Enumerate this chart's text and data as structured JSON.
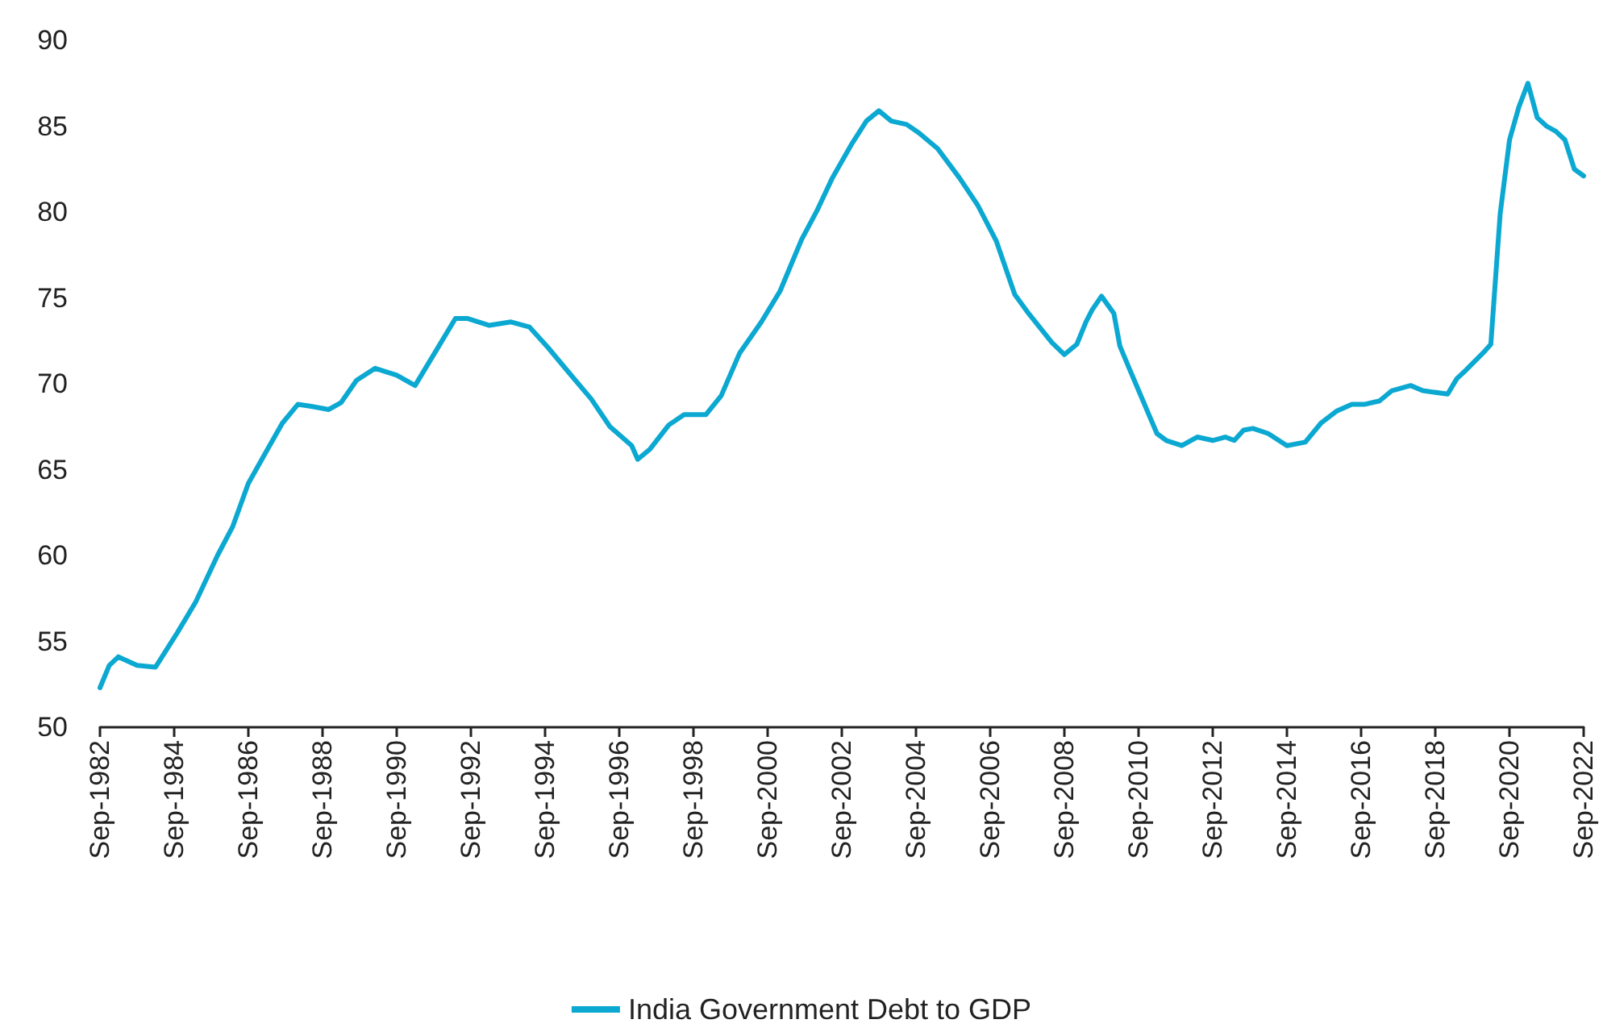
{
  "chart_data": {
    "type": "line",
    "x": [
      "1982-09",
      "1982-12",
      "1983-03",
      "1983-09",
      "1984-03",
      "1984-10",
      "1985-04",
      "1985-11",
      "1986-04",
      "1986-09",
      "1987-03",
      "1987-08",
      "1988-01",
      "1988-05",
      "1988-11",
      "1989-03",
      "1989-08",
      "1990-02",
      "1990-09",
      "1991-03",
      "1991-10",
      "1992-04",
      "1992-08",
      "1993-03",
      "1993-10",
      "1994-04",
      "1994-10",
      "1995-05",
      "1995-12",
      "1996-06",
      "1997-01",
      "1997-03",
      "1997-07",
      "1998-01",
      "1998-06",
      "1999-01",
      "1999-06",
      "1999-12",
      "2000-07",
      "2001-01",
      "2001-08",
      "2002-01",
      "2002-06",
      "2002-12",
      "2003-05",
      "2003-09",
      "2004-01",
      "2004-06",
      "2004-10",
      "2005-04",
      "2005-11",
      "2006-05",
      "2006-11",
      "2007-05",
      "2007-09",
      "2008-05",
      "2008-09",
      "2009-01",
      "2009-04",
      "2009-06",
      "2009-09",
      "2010-01",
      "2010-03",
      "2010-06",
      "2010-10",
      "2011-03",
      "2011-06",
      "2011-11",
      "2012-04",
      "2012-09",
      "2013-01",
      "2013-04",
      "2013-07",
      "2013-10",
      "2014-03",
      "2014-09",
      "2015-03",
      "2015-08",
      "2016-01",
      "2016-06",
      "2016-10",
      "2017-03",
      "2017-07",
      "2018-01",
      "2018-05",
      "2019-01",
      "2019-04",
      "2019-07",
      "2020-01",
      "2020-03",
      "2020-06",
      "2020-09",
      "2020-12",
      "2021-03",
      "2021-06",
      "2021-09",
      "2021-12",
      "2022-03",
      "2022-06",
      "2022-09"
    ],
    "series": [
      {
        "name": "India Government Debt to GDP",
        "color": "#0ba8d2",
        "values": [
          52.3,
          53.6,
          54.1,
          53.6,
          53.5,
          55.5,
          57.3,
          60.0,
          61.7,
          64.2,
          66.1,
          67.7,
          68.8,
          68.7,
          68.5,
          68.9,
          70.2,
          70.9,
          70.5,
          69.9,
          72.0,
          73.8,
          73.8,
          73.4,
          73.6,
          73.3,
          72.1,
          70.6,
          69.1,
          67.5,
          66.4,
          65.6,
          66.2,
          67.6,
          68.2,
          68.2,
          69.3,
          71.8,
          73.6,
          75.4,
          78.4,
          80.1,
          82.0,
          83.9,
          85.3,
          85.9,
          85.3,
          85.1,
          84.6,
          83.7,
          82.0,
          80.4,
          78.3,
          75.2,
          74.2,
          72.4,
          71.7,
          72.3,
          73.6,
          74.3,
          75.1,
          74.1,
          72.2,
          70.9,
          69.2,
          67.1,
          66.7,
          66.4,
          66.9,
          66.7,
          66.9,
          66.7,
          67.3,
          67.4,
          67.1,
          66.4,
          66.6,
          67.7,
          68.4,
          68.8,
          68.8,
          69.0,
          69.6,
          69.9,
          69.6,
          69.4,
          70.3,
          70.8,
          71.9,
          72.3,
          79.9,
          84.2,
          86.1,
          87.5,
          85.5,
          85.0,
          84.7,
          84.2,
          82.5,
          82.1
        ]
      }
    ],
    "xlim": [
      "1982-09",
      "2022-09"
    ],
    "xticks": [
      {
        "value": "1982-09",
        "label": "Sep-1982"
      },
      {
        "value": "1984-09",
        "label": "Sep-1984"
      },
      {
        "value": "1986-09",
        "label": "Sep-1986"
      },
      {
        "value": "1988-09",
        "label": "Sep-1988"
      },
      {
        "value": "1990-09",
        "label": "Sep-1990"
      },
      {
        "value": "1992-09",
        "label": "Sep-1992"
      },
      {
        "value": "1994-09",
        "label": "Sep-1994"
      },
      {
        "value": "1996-09",
        "label": "Sep-1996"
      },
      {
        "value": "1998-09",
        "label": "Sep-1998"
      },
      {
        "value": "2000-09",
        "label": "Sep-2000"
      },
      {
        "value": "2002-09",
        "label": "Sep-2002"
      },
      {
        "value": "2004-09",
        "label": "Sep-2004"
      },
      {
        "value": "2006-09",
        "label": "Sep-2006"
      },
      {
        "value": "2008-09",
        "label": "Sep-2008"
      },
      {
        "value": "2010-09",
        "label": "Sep-2010"
      },
      {
        "value": "2012-09",
        "label": "Sep-2012"
      },
      {
        "value": "2014-09",
        "label": "Sep-2014"
      },
      {
        "value": "2016-09",
        "label": "Sep-2016"
      },
      {
        "value": "2018-09",
        "label": "Sep-2018"
      },
      {
        "value": "2020-09",
        "label": "Sep-2020"
      },
      {
        "value": "2022-09",
        "label": "Sep-2022"
      }
    ],
    "ylim": [
      50,
      90
    ],
    "yticks": [
      50,
      55,
      60,
      65,
      70,
      75,
      80,
      85,
      90
    ],
    "grid": false,
    "legend": "bottom",
    "marker": "none",
    "line_style": "solid"
  }
}
